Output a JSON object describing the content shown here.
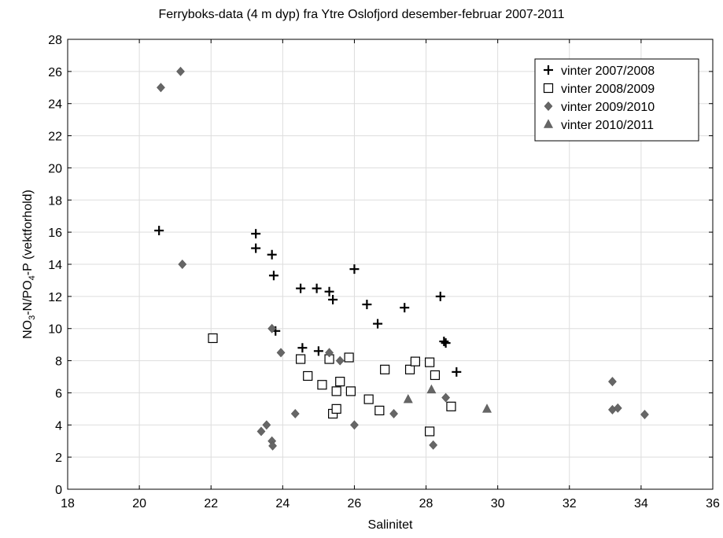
{
  "chart_data": {
    "type": "scatter",
    "title": "Ferryboks-data (4 m dyp) fra Ytre Oslofjord desember-februar 2007-2011",
    "xlabel": "Salinitet",
    "ylabel_parts": {
      "a": "NO",
      "a_sub": "3",
      "b": "-N/PO",
      "b_sub": "4",
      "c": "-P (vektforhold)"
    },
    "xlim": [
      18,
      36
    ],
    "ylim": [
      0,
      28
    ],
    "xticks": [
      18,
      20,
      22,
      24,
      26,
      28,
      30,
      32,
      34,
      36
    ],
    "yticks": [
      0,
      2,
      4,
      6,
      8,
      10,
      12,
      14,
      16,
      18,
      20,
      22,
      24,
      26,
      28
    ],
    "grid": true,
    "legend_position": "top-right",
    "colors": {
      "plus": "#000000",
      "square_edge": "#000000",
      "diamond": "#666666",
      "triangle": "#666666",
      "grid": "#dddddd"
    },
    "series": [
      {
        "name": "vinter 2007/2008",
        "marker": "plus",
        "points": [
          [
            20.55,
            16.1
          ],
          [
            23.25,
            15.9
          ],
          [
            23.25,
            15.0
          ],
          [
            23.7,
            14.6
          ],
          [
            23.75,
            13.3
          ],
          [
            26.0,
            13.7
          ],
          [
            24.5,
            12.5
          ],
          [
            24.95,
            12.5
          ],
          [
            25.3,
            12.3
          ],
          [
            25.4,
            11.8
          ],
          [
            26.35,
            11.5
          ],
          [
            27.4,
            11.3
          ],
          [
            28.4,
            12.0
          ],
          [
            26.65,
            10.3
          ],
          [
            23.8,
            9.85
          ],
          [
            24.55,
            8.8
          ],
          [
            25.0,
            8.6
          ],
          [
            28.5,
            9.2
          ],
          [
            28.55,
            9.1
          ],
          [
            28.85,
            7.3
          ]
        ]
      },
      {
        "name": "vinter 2008/2009",
        "marker": "square",
        "points": [
          [
            22.05,
            9.4
          ],
          [
            24.5,
            8.1
          ],
          [
            24.7,
            7.05
          ],
          [
            25.1,
            6.5
          ],
          [
            25.3,
            8.1
          ],
          [
            25.5,
            6.1
          ],
          [
            25.6,
            6.7
          ],
          [
            25.85,
            8.2
          ],
          [
            25.9,
            6.1
          ],
          [
            25.4,
            4.7
          ],
          [
            25.5,
            5.0
          ],
          [
            26.4,
            5.6
          ],
          [
            26.7,
            4.9
          ],
          [
            26.85,
            7.45
          ],
          [
            27.55,
            7.45
          ],
          [
            27.7,
            7.95
          ],
          [
            28.1,
            7.9
          ],
          [
            28.25,
            7.1
          ],
          [
            28.1,
            3.6
          ],
          [
            28.7,
            5.15
          ]
        ]
      },
      {
        "name": "vinter 2009/2010",
        "marker": "diamond",
        "points": [
          [
            20.6,
            25.0
          ],
          [
            21.15,
            26.0
          ],
          [
            21.2,
            14.0
          ],
          [
            23.7,
            10.0
          ],
          [
            23.95,
            8.5
          ],
          [
            23.4,
            3.6
          ],
          [
            23.55,
            4.0
          ],
          [
            23.7,
            3.0
          ],
          [
            23.72,
            2.7
          ],
          [
            24.35,
            4.7
          ],
          [
            25.3,
            8.5
          ],
          [
            25.6,
            8.0
          ],
          [
            26.0,
            4.0
          ],
          [
            27.1,
            4.7
          ],
          [
            28.2,
            2.75
          ],
          [
            28.55,
            5.7
          ],
          [
            33.2,
            6.7
          ],
          [
            33.2,
            4.95
          ],
          [
            33.35,
            5.05
          ],
          [
            34.1,
            4.65
          ]
        ]
      },
      {
        "name": "vinter 2010/2011",
        "marker": "triangle",
        "points": [
          [
            27.5,
            5.6
          ],
          [
            28.15,
            6.2
          ],
          [
            29.7,
            5.0
          ]
        ]
      }
    ]
  }
}
